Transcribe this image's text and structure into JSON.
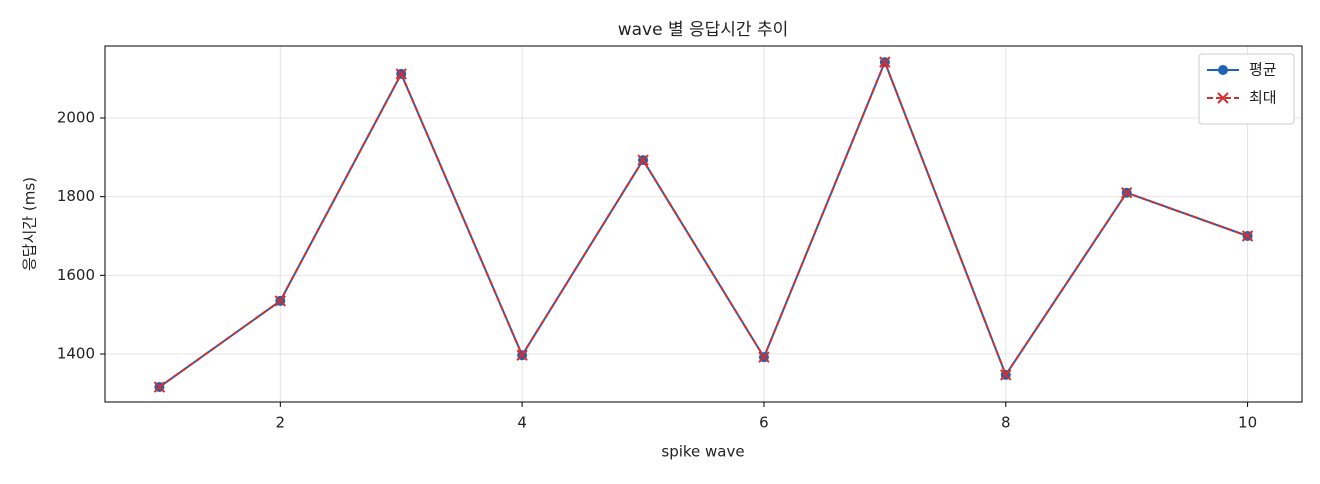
{
  "chart_data": {
    "type": "line",
    "title": "wave 별 응답시간 추이",
    "x_label": "spike wave",
    "y_label": "응답시간 (ms)",
    "x": [
      1,
      2,
      3,
      4,
      5,
      6,
      7,
      8,
      9,
      10
    ],
    "series": [
      {
        "name": "평균",
        "color": "#1f63b4",
        "marker": "circle",
        "dash": false,
        "values": [
          1316,
          1535,
          2112,
          1397,
          1893,
          1392,
          2142,
          1347,
          1810,
          1700
        ]
      },
      {
        "name": "최대",
        "color": "#d32f2f",
        "marker": "x",
        "dash": true,
        "values": [
          1316,
          1535,
          2112,
          1397,
          1893,
          1392,
          2142,
          1347,
          1810,
          1700
        ]
      }
    ],
    "xlim": [
      0.55,
      10.45
    ],
    "ylim": [
      1278,
      2183
    ],
    "xticks": [
      2,
      4,
      6,
      8,
      10
    ],
    "yticks": [
      1400,
      1600,
      1800,
      2000
    ],
    "grid": true,
    "legend": "upper right"
  }
}
